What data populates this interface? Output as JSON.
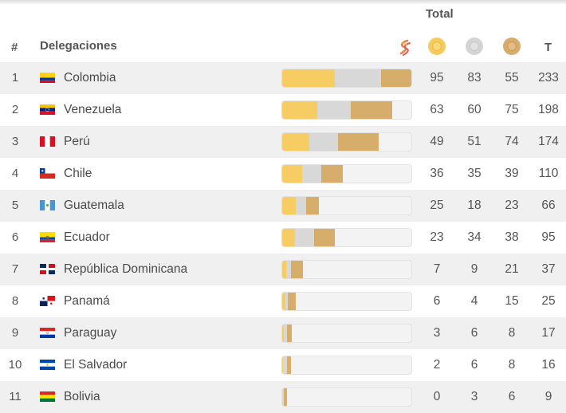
{
  "header": {
    "total_label": "Total",
    "rank_label": "#",
    "delegations_label": "Delegaciones",
    "logo_icon": "games-logo-icon",
    "total_short": "T"
  },
  "colors": {
    "gold": "#f5cd62",
    "silver": "#d8d8d8",
    "bronze": "#d7ad6c",
    "row_alt": "#f0f0f0"
  },
  "rows": [
    {
      "rank": "1",
      "country": "Colombia",
      "flag": "colombia-flag-icon",
      "gold": "95",
      "silver": "83",
      "bronze": "55",
      "total": "233"
    },
    {
      "rank": "2",
      "country": "Venezuela",
      "flag": "venezuela-flag-icon",
      "gold": "63",
      "silver": "60",
      "bronze": "75",
      "total": "198"
    },
    {
      "rank": "3",
      "country": "Perú",
      "flag": "peru-flag-icon",
      "gold": "49",
      "silver": "51",
      "bronze": "74",
      "total": "174"
    },
    {
      "rank": "4",
      "country": "Chile",
      "flag": "chile-flag-icon",
      "gold": "36",
      "silver": "35",
      "bronze": "39",
      "total": "110"
    },
    {
      "rank": "5",
      "country": "Guatemala",
      "flag": "guatemala-flag-icon",
      "gold": "25",
      "silver": "18",
      "bronze": "23",
      "total": "66"
    },
    {
      "rank": "6",
      "country": "Ecuador",
      "flag": "ecuador-flag-icon",
      "gold": "23",
      "silver": "34",
      "bronze": "38",
      "total": "95"
    },
    {
      "rank": "7",
      "country": "República Dominicana",
      "flag": "dominican-republic-flag-icon",
      "gold": "7",
      "silver": "9",
      "bronze": "21",
      "total": "37"
    },
    {
      "rank": "8",
      "country": "Panamá",
      "flag": "panama-flag-icon",
      "gold": "6",
      "silver": "4",
      "bronze": "15",
      "total": "25"
    },
    {
      "rank": "9",
      "country": "Paraguay",
      "flag": "paraguay-flag-icon",
      "gold": "3",
      "silver": "6",
      "bronze": "8",
      "total": "17"
    },
    {
      "rank": "10",
      "country": "El Salvador",
      "flag": "el-salvador-flag-icon",
      "gold": "2",
      "silver": "6",
      "bronze": "8",
      "total": "16"
    },
    {
      "rank": "11",
      "country": "Bolivia",
      "flag": "bolivia-flag-icon",
      "gold": "0",
      "silver": "3",
      "bronze": "6",
      "total": "9"
    }
  ]
}
